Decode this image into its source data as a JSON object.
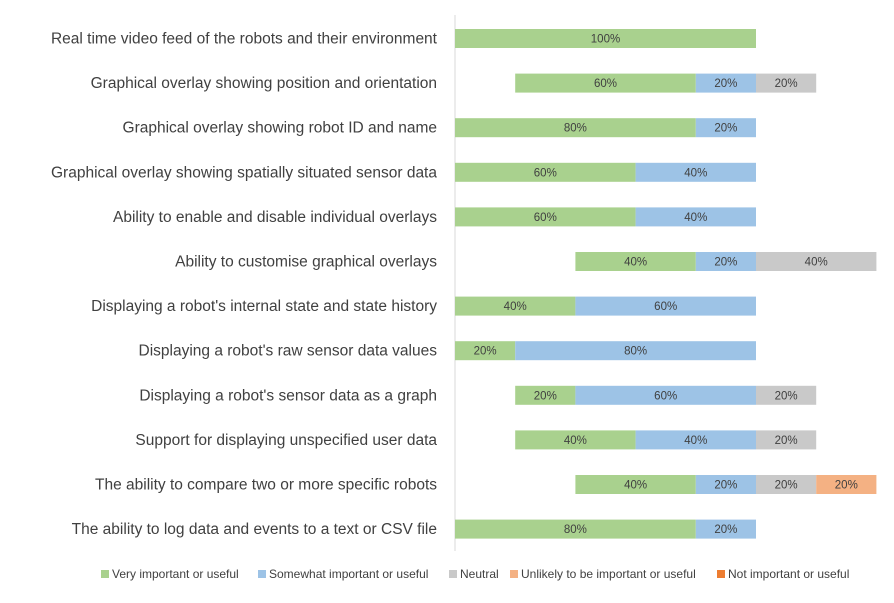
{
  "chart_data": {
    "type": "bar",
    "orientation": "horizontal",
    "stacked": true,
    "diverging": true,
    "categories": [
      "Real time video feed of the robots and their environment",
      "Graphical overlay showing position and orientation",
      "Graphical overlay showing robot ID and name",
      "Graphical overlay showing  spatially situated sensor data",
      "Ability to enable and disable individual overlays",
      "Ability to customise graphical overlays",
      "Displaying a robot's internal state and state history",
      "Displaying a robot's raw sensor data values",
      "Displaying a robot's sensor data as a graph",
      "Support for displaying unspecified user data",
      "The ability to compare two or more specific robots",
      "The ability to log data and events to a text or CSV file"
    ],
    "series": [
      {
        "name": "Very important or useful",
        "color": "#a9d18e",
        "values": [
          100,
          60,
          80,
          60,
          60,
          40,
          40,
          20,
          20,
          40,
          40,
          80
        ]
      },
      {
        "name": "Somewhat important or useful",
        "color": "#9dc3e6",
        "values": [
          0,
          20,
          20,
          40,
          40,
          20,
          60,
          80,
          60,
          40,
          20,
          20
        ]
      },
      {
        "name": "Neutral",
        "color": "#c9c9c9",
        "values": [
          0,
          20,
          0,
          0,
          0,
          40,
          0,
          0,
          20,
          20,
          20,
          0
        ]
      },
      {
        "name": "Unlikely to be important or useful",
        "color": "#f4b183",
        "values": [
          0,
          0,
          0,
          0,
          0,
          0,
          0,
          0,
          0,
          0,
          20,
          0
        ]
      },
      {
        "name": "Not important or useful",
        "color": "#ed7d31",
        "values": [
          0,
          0,
          0,
          0,
          0,
          0,
          0,
          0,
          0,
          0,
          0,
          0
        ]
      }
    ],
    "value_unit": "%",
    "title": "",
    "xlabel": "",
    "ylabel": "",
    "grid": false,
    "legend": "bottom"
  }
}
